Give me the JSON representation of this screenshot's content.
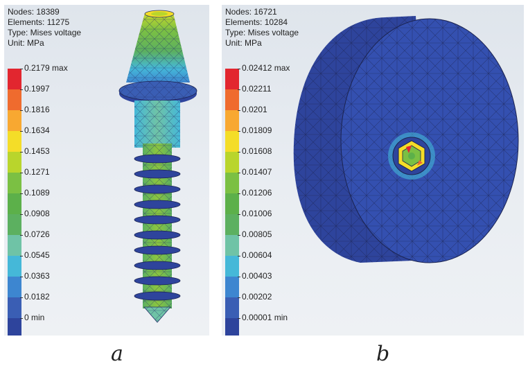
{
  "panels": [
    {
      "info": {
        "nodes": "Nodes: 18389",
        "elements": "Elements: 11275",
        "type": "Type: Mises voltage",
        "unit": "Unit: MPa"
      },
      "legend": [
        {
          "label": "0.2179 max",
          "color": "#e2262f"
        },
        {
          "label": "0.1997",
          "color": "#ef6b2e"
        },
        {
          "label": "0.1816",
          "color": "#f8a831"
        },
        {
          "label": "0.1634",
          "color": "#f4dd28"
        },
        {
          "label": "0.1453",
          "color": "#b9d52c"
        },
        {
          "label": "0.1271",
          "color": "#7bc043"
        },
        {
          "label": "0.1089",
          "color": "#5cb04a"
        },
        {
          "label": "0.0908",
          "color": "#5cb060"
        },
        {
          "label": "0.0726",
          "color": "#6fc3a6"
        },
        {
          "label": "0.0545",
          "color": "#45b8d8"
        },
        {
          "label": "0.0363",
          "color": "#3d86d0"
        },
        {
          "label": "0.0182",
          "color": "#3a5eb4"
        },
        {
          "label": "0 min",
          "color": "#2e449c"
        }
      ],
      "caption": "a"
    },
    {
      "info": {
        "nodes": "Nodes: 16721",
        "elements": "Elements: 10284",
        "type": "Type: Mises voltage",
        "unit": "Unit: MPa"
      },
      "legend": [
        {
          "label": "0.02412 max",
          "color": "#e2262f"
        },
        {
          "label": "0.02211",
          "color": "#ef6b2e"
        },
        {
          "label": "0.0201",
          "color": "#f8a831"
        },
        {
          "label": "0.01809",
          "color": "#f4dd28"
        },
        {
          "label": "0.01608",
          "color": "#b9d52c"
        },
        {
          "label": "0.01407",
          "color": "#7bc043"
        },
        {
          "label": "0.01206",
          "color": "#5cb04a"
        },
        {
          "label": "0.01006",
          "color": "#5cb060"
        },
        {
          "label": "0.00805",
          "color": "#6fc3a6"
        },
        {
          "label": "0.00604",
          "color": "#45b8d8"
        },
        {
          "label": "0.00403",
          "color": "#3d86d0"
        },
        {
          "label": "0.00202",
          "color": "#3a5eb4"
        },
        {
          "label": "0.00001 min",
          "color": "#2e449c"
        }
      ],
      "caption": "b"
    }
  ]
}
